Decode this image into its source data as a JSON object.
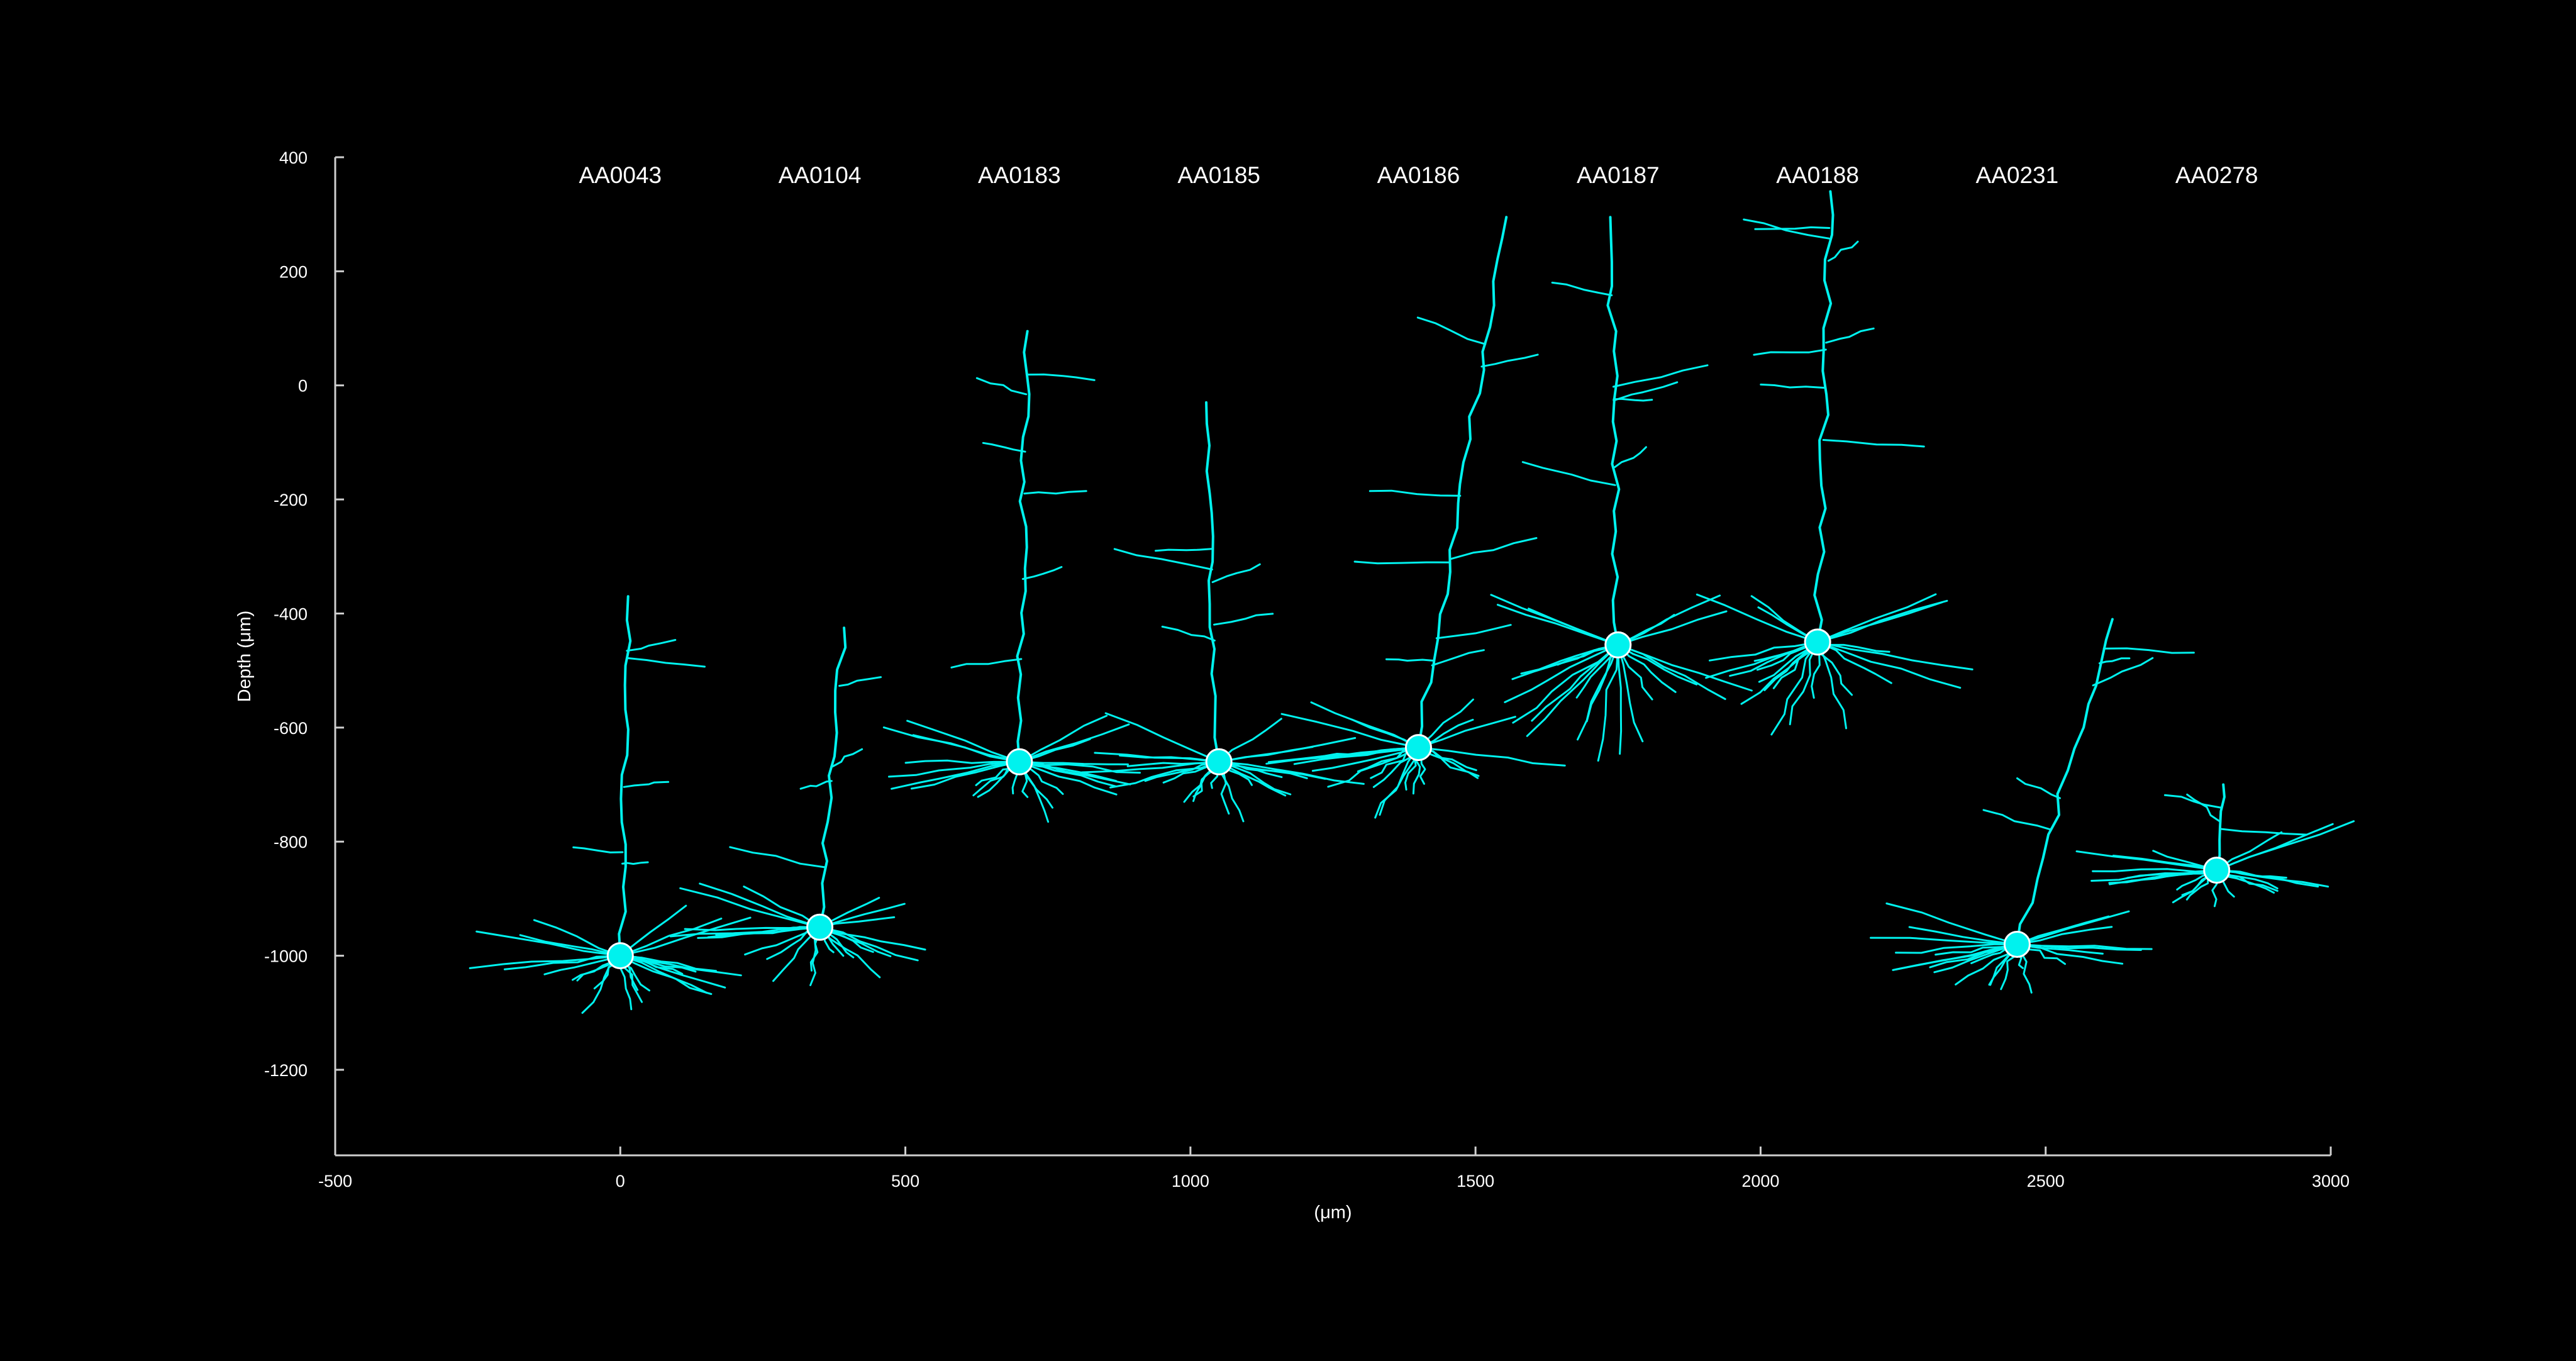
{
  "chart_data": {
    "type": "scatter",
    "title": "",
    "xlabel": "(μm)",
    "ylabel": "Depth (μm)",
    "xlim": [
      -500,
      3000
    ],
    "ylim": [
      -1350,
      400
    ],
    "x_ticks": [
      -500,
      0,
      500,
      1000,
      1500,
      2000,
      2500,
      3000
    ],
    "y_ticks": [
      400,
      200,
      0,
      -200,
      -400,
      -600,
      -800,
      -1000,
      -1200
    ],
    "grid": false,
    "legend": "none",
    "colors": {
      "background": "#000000",
      "neuron": "#00f2ee",
      "soma_outline": "#ffffff",
      "axis": "#cfcfcf",
      "text": "#ffffff"
    },
    "series": [
      {
        "name": "AA0043",
        "x": 0,
        "y": -1000,
        "apical_top": -370,
        "down_extent": -1110
      },
      {
        "name": "AA0104",
        "x": 350,
        "y": -950,
        "apical_top": -425,
        "down_extent": -1060
      },
      {
        "name": "AA0183",
        "x": 700,
        "y": -660,
        "apical_top": 95,
        "down_extent": -770
      },
      {
        "name": "AA0185",
        "x": 1050,
        "y": -660,
        "apical_top": -30,
        "down_extent": -770
      },
      {
        "name": "AA0186",
        "x": 1400,
        "y": -635,
        "apical_top": 295,
        "down_extent": -780
      },
      {
        "name": "AA0187",
        "x": 1750,
        "y": -455,
        "apical_top": 295,
        "down_extent": -690
      },
      {
        "name": "AA0188",
        "x": 2100,
        "y": -450,
        "apical_top": 340,
        "down_extent": -625
      },
      {
        "name": "AA0231",
        "x": 2450,
        "y": -980,
        "apical_top": -410,
        "down_extent": -1070
      },
      {
        "name": "AA0278",
        "x": 2800,
        "y": -850,
        "apical_top": -700,
        "down_extent": -900
      }
    ]
  }
}
